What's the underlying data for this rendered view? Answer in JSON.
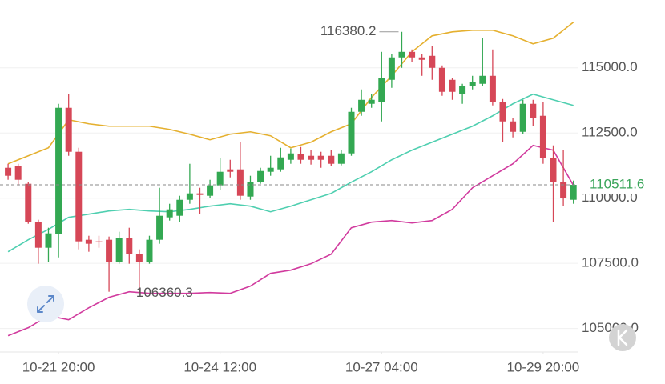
{
  "chart_data": {
    "type": "candlestick",
    "xlim": [
      -0.8,
      56.5
    ],
    "ylim": [
      104100,
      117600
    ],
    "xticks": [
      {
        "value": 5,
        "label": "10-21 20:00"
      },
      {
        "value": 21,
        "label": "10-24 12:00"
      },
      {
        "value": 37,
        "label": "10-27 04:00"
      },
      {
        "value": 53,
        "label": "10-29 20:00"
      }
    ],
    "yticks": [
      {
        "value": 105000,
        "label": "105000.0"
      },
      {
        "value": 107500,
        "label": "107500.0"
      },
      {
        "value": 110000,
        "label": "110000.0"
      },
      {
        "value": 112500,
        "label": "112500.0"
      },
      {
        "value": 115000,
        "label": "115000.0"
      }
    ],
    "grid": true,
    "up_color": "#33a852",
    "down_color": "#d64757",
    "open": [
      111165,
      111227,
      110552,
      109080,
      108098,
      108620,
      113466,
      111779,
      108405,
      108344,
      108405,
      107546,
      108466,
      107853,
      107546,
      108405,
      109264,
      109325,
      109938,
      110184,
      110092,
      110491,
      111104,
      111104,
      110061,
      110613,
      111012,
      111104,
      111472,
      111687,
      111625,
      111625,
      111625,
      111319,
      111717,
      113312,
      113619,
      113680,
      114539,
      115398,
      115612,
      115398,
      115459,
      114999,
      114539,
      113987,
      114294,
      114386,
      114692,
      113680,
      112944,
      112545,
      113619,
      113159,
      111533,
      110613,
      109938
    ],
    "high": [
      111319,
      111319,
      110613,
      109172,
      108865,
      113619,
      113987,
      111932,
      108558,
      108558,
      108528,
      108712,
      108865,
      108037,
      108558,
      110399,
      109785,
      110092,
      111319,
      110399,
      110705,
      111533,
      111472,
      112147,
      110859,
      111165,
      111625,
      111932,
      111901,
      111963,
      111840,
      111779,
      111840,
      111840,
      113466,
      114171,
      113987,
      115612,
      115520,
      116380.2,
      115704,
      115520,
      115827,
      115091,
      114600,
      114386,
      114692,
      116134,
      115704,
      113803,
      113067,
      113772,
      113772,
      113680,
      112024,
      111840,
      110675
    ],
    "low": [
      110705,
      110491,
      109018,
      107485,
      107546,
      107730,
      111625,
      108037,
      107945,
      108098,
      106411,
      107485,
      107485,
      106360.3,
      107485,
      108252,
      109141,
      109080,
      109785,
      109386,
      110000,
      110307,
      110797,
      109938,
      109938,
      110552,
      110859,
      111012,
      111319,
      111319,
      111288,
      111165,
      111227,
      111257,
      111625,
      113159,
      113466,
      112944,
      114232,
      114999,
      115214,
      114692,
      114539,
      113926,
      113772,
      113619,
      114171,
      114294,
      113558,
      112147,
      112331,
      112453,
      112760,
      111319,
      109080,
      109693,
      109785
    ],
    "close": [
      110859,
      110705,
      109080,
      108098,
      108650,
      113466,
      111779,
      108344,
      108252,
      108313,
      107546,
      108466,
      107853,
      107546,
      108405,
      109325,
      109570,
      109938,
      110184,
      110123,
      110491,
      111012,
      111012,
      110092,
      110613,
      111043,
      111165,
      111564,
      111717,
      111472,
      111472,
      111472,
      111319,
      111717,
      113312,
      113772,
      113772,
      114600,
      115398,
      115612,
      115398,
      115306,
      114999,
      114079,
      114079,
      114294,
      114447,
      114692,
      113680,
      112944,
      112545,
      113619,
      113067,
      111533,
      110613,
      110000,
      110511.6
    ],
    "last_price_color": "#3aa55a",
    "overlays": [
      {
        "color": "#e5b02f",
        "x": [
          0,
          2,
          4,
          6,
          8,
          10,
          12,
          14,
          16,
          18,
          20,
          22,
          24,
          26,
          28,
          30,
          32,
          34,
          36,
          38,
          40,
          42,
          44,
          46,
          48,
          50,
          52,
          54,
          56
        ],
        "values": [
          111319,
          111625,
          111932,
          113006,
          112852,
          112760,
          112760,
          112760,
          112637,
          112453,
          112239,
          112453,
          112545,
          112392,
          111932,
          112147,
          112545,
          112852,
          113864,
          114692,
          115612,
          116226,
          116379,
          116441,
          116441,
          116226,
          115919,
          116134,
          116747
        ]
      },
      {
        "color": "#4fcfb0",
        "x": [
          0,
          2,
          4,
          6,
          8,
          10,
          12,
          14,
          16,
          18,
          20,
          22,
          24,
          26,
          28,
          30,
          32,
          34,
          36,
          38,
          40,
          42,
          44,
          46,
          48,
          50,
          52,
          54,
          56
        ],
        "values": [
          107945,
          108405,
          108804,
          109264,
          109386,
          109509,
          109570,
          109509,
          109478,
          109570,
          109693,
          109785,
          109693,
          109478,
          109693,
          109938,
          110184,
          110613,
          111012,
          111472,
          111840,
          112147,
          112453,
          112760,
          113159,
          113619,
          113987,
          113772,
          113558
        ]
      },
      {
        "color": "#d13b9e",
        "x": [
          0,
          2,
          4,
          6,
          8,
          10,
          12,
          14,
          16,
          18,
          20,
          22,
          24,
          26,
          28,
          30,
          32,
          34,
          36,
          38,
          40,
          42,
          44,
          46,
          48,
          50,
          52,
          54,
          56
        ],
        "values": [
          104725,
          105031,
          105491,
          105338,
          105798,
          106197,
          106411,
          106350,
          106350,
          106350,
          106381,
          106350,
          106626,
          107117,
          107240,
          107485,
          107853,
          108865,
          109080,
          109141,
          109049,
          109141,
          109570,
          110399,
          110859,
          111319,
          112024,
          111840,
          110491
        ]
      }
    ]
  }
}
